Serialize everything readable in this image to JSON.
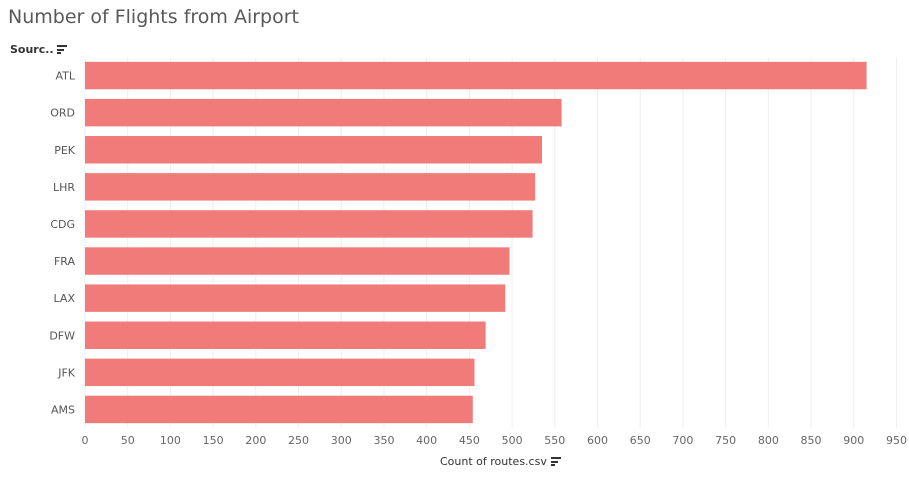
{
  "chart_data": {
    "type": "bar",
    "orientation": "horizontal",
    "title": "Number of Flights from Airport",
    "ylabel": "Sourc..",
    "xlabel": "Count of routes.csv",
    "categories": [
      "ATL",
      "ORD",
      "PEK",
      "LHR",
      "CDG",
      "FRA",
      "LAX",
      "DFW",
      "JFK",
      "AMS"
    ],
    "values": [
      915,
      558,
      535,
      527,
      524,
      497,
      492,
      469,
      456,
      454
    ],
    "xlim": [
      0,
      960
    ],
    "xticks": [
      0,
      50,
      100,
      150,
      200,
      250,
      300,
      350,
      400,
      450,
      500,
      550,
      600,
      650,
      700,
      750,
      800,
      850,
      900,
      950
    ],
    "grid": "vertical",
    "bar_color": "#f07b78",
    "grid_color": "#eeeeee",
    "sort_icon": "sort-descending-icon"
  }
}
